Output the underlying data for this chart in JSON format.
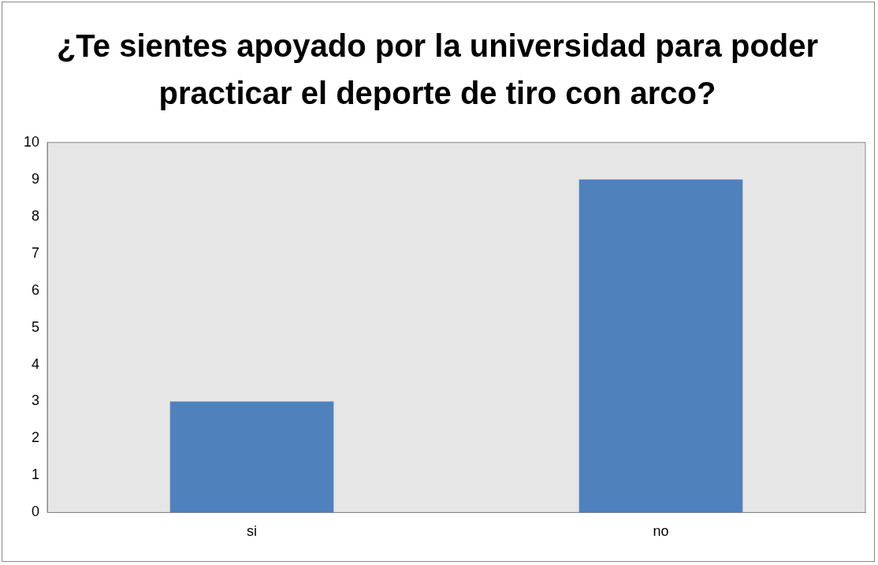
{
  "chart_data": {
    "type": "bar",
    "title": "¿Te sientes apoyado por la universidad para poder practicar el deporte de tiro con arco?",
    "categories": [
      "si",
      "no"
    ],
    "values": [
      3,
      9
    ],
    "color": "#4f81bd",
    "ylim": [
      0,
      10
    ],
    "yticks": [
      0,
      1,
      2,
      3,
      4,
      5,
      6,
      7,
      8,
      9,
      10
    ],
    "grid": false,
    "legend": false
  }
}
